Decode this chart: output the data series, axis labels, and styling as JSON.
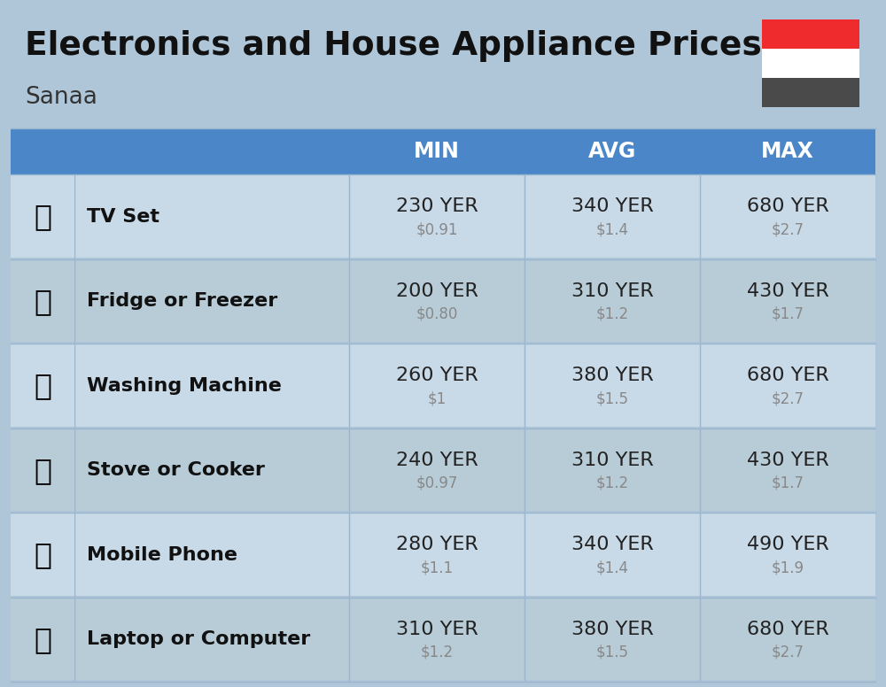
{
  "title": "Electronics and House Appliance Prices",
  "subtitle": "Sanaa",
  "background_color": "#aec6d8",
  "header_color": "#4a86c8",
  "header_text_color": "#ffffff",
  "row_bg_light": "#c8d9e8",
  "row_bg_dark": "#b8ccd e",
  "item_name_color": "#111111",
  "yer_color": "#222222",
  "usd_color": "#888888",
  "columns": [
    "MIN",
    "AVG",
    "MAX"
  ],
  "items": [
    {
      "name": "TV Set",
      "min_yer": "230 YER",
      "min_usd": "$0.91",
      "avg_yer": "340 YER",
      "avg_usd": "$1.4",
      "max_yer": "680 YER",
      "max_usd": "$2.7"
    },
    {
      "name": "Fridge or Freezer",
      "min_yer": "200 YER",
      "min_usd": "$0.80",
      "avg_yer": "310 YER",
      "avg_usd": "$1.2",
      "max_yer": "430 YER",
      "max_usd": "$1.7"
    },
    {
      "name": "Washing Machine",
      "min_yer": "260 YER",
      "min_usd": "$1",
      "avg_yer": "380 YER",
      "avg_usd": "$1.5",
      "max_yer": "680 YER",
      "max_usd": "$2.7"
    },
    {
      "name": "Stove or Cooker",
      "min_yer": "240 YER",
      "min_usd": "$0.97",
      "avg_yer": "310 YER",
      "avg_usd": "$1.2",
      "max_yer": "430 YER",
      "max_usd": "$1.7"
    },
    {
      "name": "Mobile Phone",
      "min_yer": "280 YER",
      "min_usd": "$1.1",
      "avg_yer": "340 YER",
      "avg_usd": "$1.4",
      "max_yer": "490 YER",
      "max_usd": "$1.9"
    },
    {
      "name": "Laptop or Computer",
      "min_yer": "310 YER",
      "min_usd": "$1.2",
      "avg_yer": "380 YER",
      "avg_usd": "$1.5",
      "max_yer": "680 YER",
      "max_usd": "$2.7"
    }
  ],
  "flag_colors": [
    "#EF2B2D",
    "#FFFFFF",
    "#4a4a4a"
  ],
  "icons": [
    "📺",
    "🧊",
    "🥣",
    "🔥",
    "📱",
    "💻"
  ]
}
